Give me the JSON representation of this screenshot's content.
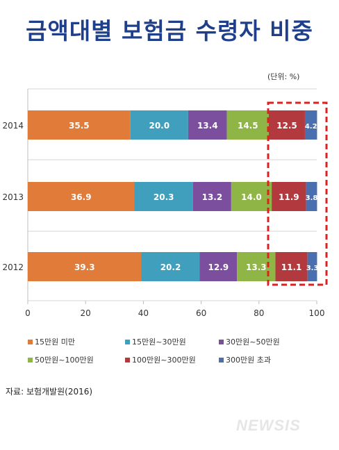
{
  "title": "금액대별 보험금 수령자 비중",
  "unit_note": "(단위: %)",
  "source": "자료: 보험개발원(2016)",
  "watermark": "NEWSIS",
  "chart_data": {
    "type": "bar",
    "orientation": "horizontal",
    "stacked": true,
    "categories": [
      "2014",
      "2013",
      "2012"
    ],
    "series": [
      {
        "name": "15만원 미만",
        "color": "#e07b39",
        "values": [
          35.5,
          36.9,
          39.3
        ]
      },
      {
        "name": "15만원~30만원",
        "color": "#3f9fbd",
        "values": [
          20.0,
          20.3,
          20.2
        ]
      },
      {
        "name": "30만원~50만원",
        "color": "#7b4f9e",
        "values": [
          13.4,
          13.2,
          12.9
        ]
      },
      {
        "name": "50만원~100만원",
        "color": "#8fb546",
        "values": [
          14.5,
          14.0,
          13.3
        ]
      },
      {
        "name": "100만원~300만원",
        "color": "#b23a3f",
        "values": [
          12.5,
          11.9,
          11.1
        ]
      },
      {
        "name": "300만원 초과",
        "color": "#4a6fae",
        "values": [
          4.2,
          3.8,
          3.3
        ]
      }
    ],
    "xlim": [
      0,
      100
    ],
    "xticks": [
      "0",
      "20",
      "40",
      "60",
      "80",
      "100"
    ],
    "grid": true,
    "legend_position": "bottom",
    "highlight_color": "#e02020"
  }
}
